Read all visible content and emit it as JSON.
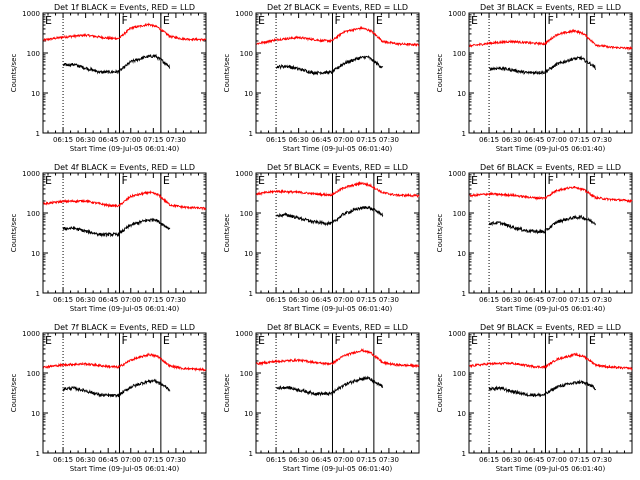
{
  "chart_data": {
    "type": "line",
    "x_tick_labels": [
      "06:15",
      "06:30",
      "06:45",
      "07:00",
      "07:15",
      "07:30"
    ],
    "x_tick_minutes": [
      375,
      390,
      405,
      420,
      435,
      450
    ],
    "x_range_minutes": [
      361.67,
      470
    ],
    "y_scale": "log",
    "ylim": [
      1,
      1000
    ],
    "y_tick_labels": [
      "1",
      "10",
      "100",
      "1000"
    ],
    "y_tick_values": [
      1,
      10,
      100,
      1000
    ],
    "ylabel": "Counts/sec",
    "xlabel": "Start Time (09-Jul-05 06:01:40)",
    "vertical_markers": [
      {
        "time_min": 375,
        "style": "dotted",
        "label": ""
      },
      {
        "time_min": 412.5,
        "style": "solid",
        "label": "F"
      },
      {
        "time_min": 440,
        "style": "solid",
        "label": "E"
      }
    ],
    "start_label": "E",
    "series_colors": {
      "events": "#000000",
      "lld": "#ff0000"
    },
    "panels": [
      {
        "title": "Det 1f BLACK = Events, RED = LLD",
        "lld_knots": [
          [
            362,
            210
          ],
          [
            375,
            250
          ],
          [
            390,
            280
          ],
          [
            405,
            235
          ],
          [
            412,
            230
          ],
          [
            420,
            420
          ],
          [
            432,
            520
          ],
          [
            438,
            440
          ],
          [
            446,
            260
          ],
          [
            455,
            225
          ],
          [
            470,
            215
          ]
        ],
        "events_knots": [
          [
            375,
            50
          ],
          [
            382,
            52
          ],
          [
            390,
            42
          ],
          [
            400,
            33
          ],
          [
            410,
            34
          ],
          [
            412,
            34
          ],
          [
            420,
            60
          ],
          [
            430,
            80
          ],
          [
            436,
            85
          ],
          [
            442,
            60
          ],
          [
            446,
            45
          ]
        ]
      },
      {
        "title": "Det 2f BLACK = Events, RED = LLD",
        "lld_knots": [
          [
            362,
            170
          ],
          [
            375,
            215
          ],
          [
            390,
            245
          ],
          [
            405,
            205
          ],
          [
            412,
            200
          ],
          [
            420,
            340
          ],
          [
            432,
            420
          ],
          [
            438,
            360
          ],
          [
            446,
            195
          ],
          [
            455,
            170
          ],
          [
            470,
            160
          ]
        ],
        "events_knots": [
          [
            375,
            45
          ],
          [
            382,
            47
          ],
          [
            390,
            40
          ],
          [
            400,
            32
          ],
          [
            410,
            33
          ],
          [
            412,
            33
          ],
          [
            420,
            55
          ],
          [
            430,
            75
          ],
          [
            436,
            80
          ],
          [
            442,
            55
          ],
          [
            446,
            42
          ]
        ]
      },
      {
        "title": "Det 3f BLACK = Events, RED = LLD",
        "lld_knots": [
          [
            362,
            150
          ],
          [
            375,
            175
          ],
          [
            390,
            195
          ],
          [
            405,
            175
          ],
          [
            412,
            170
          ],
          [
            420,
            290
          ],
          [
            432,
            360
          ],
          [
            438,
            300
          ],
          [
            446,
            160
          ],
          [
            455,
            140
          ],
          [
            470,
            130
          ]
        ],
        "events_knots": [
          [
            375,
            40
          ],
          [
            382,
            42
          ],
          [
            390,
            38
          ],
          [
            400,
            32
          ],
          [
            410,
            33
          ],
          [
            412,
            33
          ],
          [
            420,
            52
          ],
          [
            430,
            70
          ],
          [
            436,
            75
          ],
          [
            442,
            55
          ],
          [
            446,
            42
          ]
        ]
      },
      {
        "title": "Det 4f BLACK = Events, RED = LLD",
        "lld_knots": [
          [
            362,
            170
          ],
          [
            375,
            195
          ],
          [
            390,
            200
          ],
          [
            405,
            155
          ],
          [
            412,
            150
          ],
          [
            420,
            260
          ],
          [
            432,
            330
          ],
          [
            438,
            290
          ],
          [
            446,
            160
          ],
          [
            455,
            140
          ],
          [
            470,
            130
          ]
        ],
        "events_knots": [
          [
            375,
            40
          ],
          [
            382,
            42
          ],
          [
            390,
            35
          ],
          [
            400,
            29
          ],
          [
            410,
            29
          ],
          [
            412,
            30
          ],
          [
            420,
            50
          ],
          [
            430,
            65
          ],
          [
            436,
            70
          ],
          [
            442,
            50
          ],
          [
            446,
            40
          ]
        ]
      },
      {
        "title": "Det 5f BLACK = Events, RED = LLD",
        "lld_knots": [
          [
            362,
            300
          ],
          [
            375,
            350
          ],
          [
            390,
            330
          ],
          [
            405,
            290
          ],
          [
            412,
            285
          ],
          [
            420,
            430
          ],
          [
            432,
            560
          ],
          [
            438,
            480
          ],
          [
            446,
            320
          ],
          [
            455,
            280
          ],
          [
            470,
            270
          ]
        ],
        "events_knots": [
          [
            375,
            85
          ],
          [
            382,
            90
          ],
          [
            390,
            75
          ],
          [
            400,
            60
          ],
          [
            410,
            55
          ],
          [
            412,
            55
          ],
          [
            420,
            95
          ],
          [
            430,
            130
          ],
          [
            436,
            140
          ],
          [
            442,
            110
          ],
          [
            446,
            90
          ]
        ]
      },
      {
        "title": "Det 6f BLACK = Events, RED = LLD",
        "lld_knots": [
          [
            362,
            270
          ],
          [
            375,
            300
          ],
          [
            390,
            280
          ],
          [
            405,
            240
          ],
          [
            412,
            235
          ],
          [
            420,
            370
          ],
          [
            432,
            450
          ],
          [
            438,
            380
          ],
          [
            446,
            240
          ],
          [
            455,
            220
          ],
          [
            470,
            200
          ]
        ],
        "events_knots": [
          [
            375,
            55
          ],
          [
            382,
            57
          ],
          [
            390,
            45
          ],
          [
            400,
            36
          ],
          [
            410,
            34
          ],
          [
            412,
            34
          ],
          [
            420,
            60
          ],
          [
            430,
            75
          ],
          [
            436,
            80
          ],
          [
            442,
            65
          ],
          [
            446,
            55
          ]
        ]
      },
      {
        "title": "Det 7f BLACK = Events, RED = LLD",
        "lld_knots": [
          [
            362,
            140
          ],
          [
            375,
            160
          ],
          [
            390,
            170
          ],
          [
            405,
            145
          ],
          [
            412,
            140
          ],
          [
            420,
            210
          ],
          [
            432,
            290
          ],
          [
            438,
            260
          ],
          [
            446,
            150
          ],
          [
            455,
            130
          ],
          [
            470,
            120
          ]
        ],
        "events_knots": [
          [
            375,
            40
          ],
          [
            382,
            42
          ],
          [
            390,
            36
          ],
          [
            400,
            28
          ],
          [
            410,
            27
          ],
          [
            412,
            28
          ],
          [
            420,
            45
          ],
          [
            430,
            60
          ],
          [
            436,
            65
          ],
          [
            442,
            48
          ],
          [
            446,
            38
          ]
        ]
      },
      {
        "title": "Det 8f BLACK = Events, RED = LLD",
        "lld_knots": [
          [
            362,
            170
          ],
          [
            375,
            195
          ],
          [
            390,
            210
          ],
          [
            405,
            175
          ],
          [
            412,
            170
          ],
          [
            420,
            270
          ],
          [
            432,
            370
          ],
          [
            438,
            320
          ],
          [
            446,
            180
          ],
          [
            455,
            160
          ],
          [
            470,
            150
          ]
        ],
        "events_knots": [
          [
            375,
            42
          ],
          [
            382,
            44
          ],
          [
            390,
            38
          ],
          [
            400,
            31
          ],
          [
            410,
            30
          ],
          [
            412,
            31
          ],
          [
            420,
            50
          ],
          [
            430,
            70
          ],
          [
            436,
            75
          ],
          [
            442,
            55
          ],
          [
            446,
            45
          ]
        ]
      },
      {
        "title": "Det 9f BLACK = Events, RED = LLD",
        "lld_knots": [
          [
            362,
            150
          ],
          [
            375,
            170
          ],
          [
            390,
            175
          ],
          [
            405,
            145
          ],
          [
            412,
            140
          ],
          [
            420,
            220
          ],
          [
            432,
            290
          ],
          [
            438,
            260
          ],
          [
            446,
            160
          ],
          [
            455,
            140
          ],
          [
            470,
            130
          ]
        ],
        "events_knots": [
          [
            375,
            40
          ],
          [
            382,
            42
          ],
          [
            390,
            35
          ],
          [
            400,
            29
          ],
          [
            410,
            28
          ],
          [
            412,
            29
          ],
          [
            420,
            45
          ],
          [
            430,
            55
          ],
          [
            436,
            60
          ],
          [
            442,
            50
          ],
          [
            446,
            40
          ]
        ]
      }
    ]
  }
}
